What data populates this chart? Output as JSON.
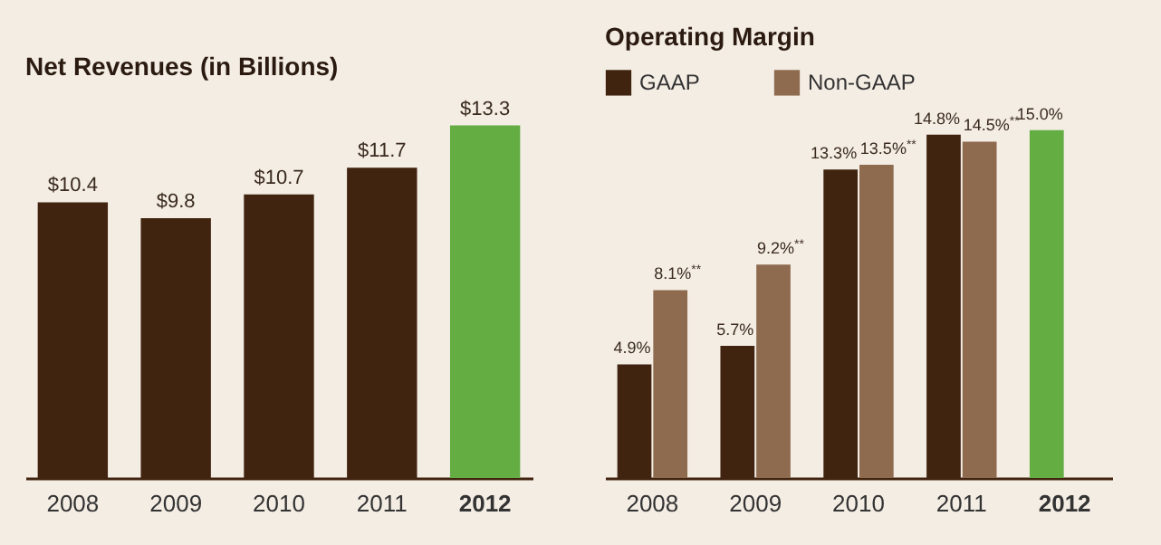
{
  "chart_data": [
    {
      "type": "bar",
      "title": "Net Revenues (in Billions)",
      "categories": [
        "2008",
        "2009",
        "2010",
        "2011",
        "2012"
      ],
      "values": [
        10.4,
        9.8,
        10.7,
        11.7,
        13.3
      ],
      "colors": [
        "#40240f",
        "#40240f",
        "#40240f",
        "#40240f",
        "#63ad43"
      ],
      "value_labels": [
        "$10.4",
        "$9.8",
        "$10.7",
        "$11.7",
        "$13.3"
      ]
    },
    {
      "type": "bar",
      "title": "Operating Margin",
      "categories": [
        "2008",
        "2009",
        "2010",
        "2011",
        "2012"
      ],
      "legend": "top left",
      "series": [
        {
          "name": "GAAP",
          "color": "#40240f",
          "colors": [
            "#40240f",
            "#40240f",
            "#40240f",
            "#40240f",
            "#63ad43"
          ],
          "values": [
            4.9,
            5.7,
            13.3,
            14.8,
            15.0
          ],
          "value_labels": [
            "4.9%",
            "5.7%",
            "13.3%",
            "14.8%",
            "15.0%"
          ]
        },
        {
          "name": "Non-GAAP",
          "color": "#8e6a4e",
          "values": [
            8.1,
            9.2,
            13.5,
            14.5,
            null
          ],
          "value_labels": [
            "8.1%$^{**}$",
            "9.2%$^{**}$",
            "13.5%$^{**}$",
            "14.5%$^{**}$",
            null
          ]
        }
      ]
    }
  ]
}
